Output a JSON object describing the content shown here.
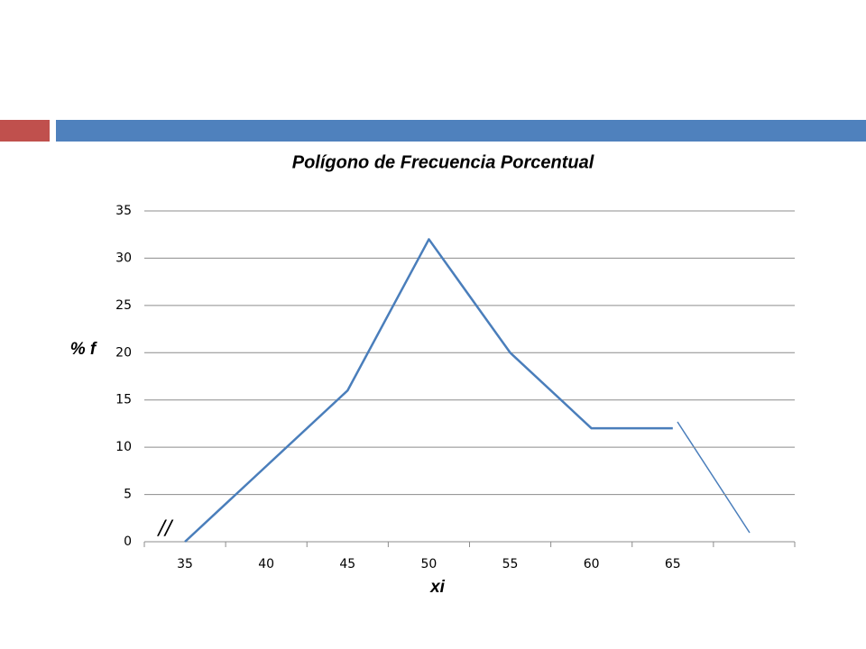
{
  "chart_data": {
    "type": "line",
    "title": "Polígono de Frecuencia Porcentual",
    "x_label": "xi",
    "y_label": "% f",
    "annotation": "//",
    "categories": [
      "35",
      "40",
      "45",
      "50",
      "55",
      "60",
      "65",
      null
    ],
    "values": [
      0,
      8,
      16,
      32,
      20,
      12,
      12,
      null
    ],
    "color": "#4a7ebb",
    "ylim": [
      0,
      35
    ],
    "yticks": [
      0,
      5,
      10,
      15,
      20,
      25,
      30,
      35
    ],
    "grid": true
  }
}
